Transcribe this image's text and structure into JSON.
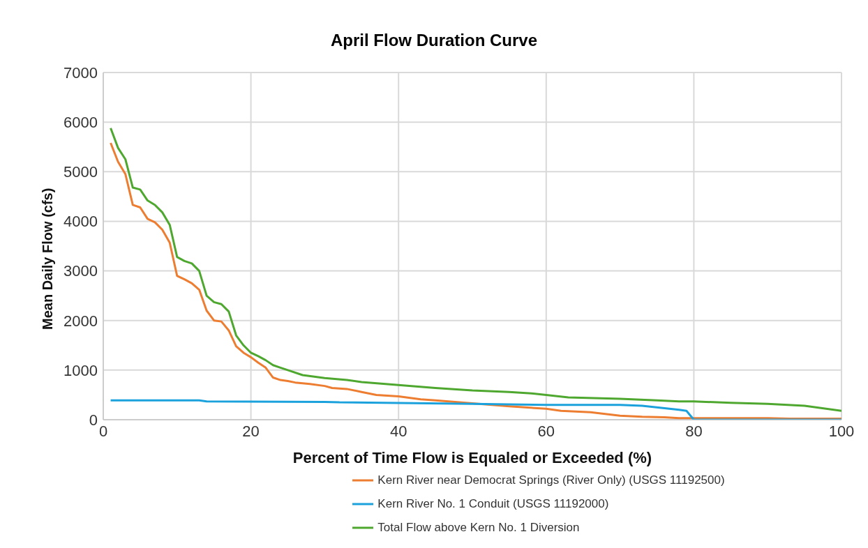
{
  "chart_data": {
    "type": "line",
    "title": "April Flow Duration Curve",
    "xlabel": "Percent of Time Flow is Equaled or Exceeded (%)",
    "ylabel": "Mean Daily Flow (cfs)",
    "xlim": [
      0,
      100
    ],
    "xticks": [
      0,
      20,
      40,
      60,
      80,
      100
    ],
    "ylim": [
      0,
      7000
    ],
    "yticks": [
      0,
      1000,
      2000,
      3000,
      4000,
      5000,
      6000,
      7000
    ],
    "grid": true,
    "legend": "bottom",
    "marker": "none",
    "line_style": "solid",
    "series": [
      {
        "name": "Kern River near Democrat Springs (River Only) (USGS 11192500)",
        "color": "#ed7d31",
        "x": [
          1,
          2,
          3,
          4,
          5,
          6,
          7,
          8,
          9,
          10,
          11,
          12,
          13,
          14,
          15,
          16,
          17,
          18,
          19,
          20,
          21,
          22,
          23,
          24,
          25,
          26,
          28,
          30,
          31,
          33,
          35,
          37,
          40,
          43,
          45,
          50,
          55,
          60,
          62,
          66,
          70,
          73,
          76,
          78,
          80,
          90,
          93,
          100
        ],
        "values": [
          5580,
          5200,
          4950,
          4330,
          4280,
          4050,
          3980,
          3830,
          3570,
          2900,
          2830,
          2750,
          2620,
          2200,
          2000,
          1980,
          1800,
          1480,
          1350,
          1260,
          1150,
          1050,
          850,
          800,
          780,
          750,
          720,
          680,
          640,
          620,
          560,
          500,
          470,
          410,
          390,
          330,
          270,
          220,
          180,
          150,
          80,
          60,
          50,
          30,
          30,
          30,
          20,
          20
        ]
      },
      {
        "name": "Kern River No. 1 Conduit (USGS 11192000)",
        "color": "#1ba1dc",
        "x": [
          1,
          13,
          14,
          30,
          32,
          50,
          60,
          70,
          73,
          78,
          79,
          80,
          100
        ],
        "values": [
          390,
          390,
          370,
          360,
          350,
          320,
          300,
          300,
          280,
          200,
          180,
          0,
          0
        ]
      },
      {
        "name": "Total Flow above Kern No. 1 Diversion",
        "color": "#4ea72e",
        "x": [
          1,
          2,
          3,
          4,
          5,
          6,
          7,
          8,
          9,
          10,
          11,
          12,
          13,
          14,
          15,
          16,
          17,
          18,
          19,
          20,
          21,
          22,
          23,
          24,
          25,
          27,
          30,
          33,
          35,
          40,
          45,
          50,
          55,
          58,
          60,
          63,
          70,
          75,
          78,
          80,
          85,
          90,
          95,
          100
        ],
        "values": [
          5880,
          5480,
          5250,
          4680,
          4640,
          4420,
          4330,
          4180,
          3930,
          3280,
          3200,
          3150,
          3000,
          2500,
          2370,
          2330,
          2180,
          1700,
          1500,
          1350,
          1280,
          1200,
          1100,
          1050,
          1000,
          900,
          840,
          800,
          760,
          700,
          640,
          590,
          560,
          530,
          500,
          450,
          420,
          390,
          370,
          370,
          340,
          320,
          280,
          180
        ]
      }
    ]
  }
}
